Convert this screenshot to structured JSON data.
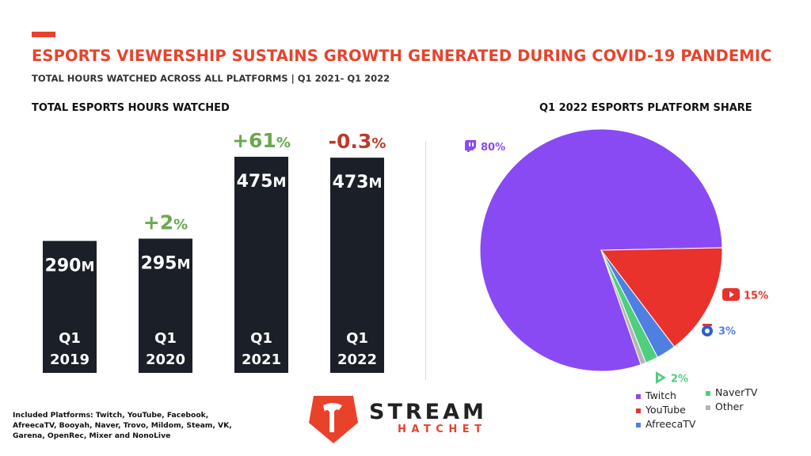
{
  "header": {
    "title": "ESPORTS VIEWERSHIP SUSTAINS GROWTH GENERATED DURING COVID-19 PANDEMIC",
    "subtitle": "TOTAL HOURS WATCHED ACROSS ALL PLATFORMS | Q1 2021- Q1 2022"
  },
  "colors": {
    "accent": "#e8422b",
    "bar": "#1b1f27",
    "growth_positive": "#6aa84f",
    "growth_negative": "#c0392b"
  },
  "chart_data": [
    {
      "type": "bar",
      "title": "TOTAL ESPORTS HOURS WATCHED",
      "categories": [
        "Q1 2019",
        "Q1 2020",
        "Q1 2021",
        "Q1 2022"
      ],
      "category_lines": [
        [
          "Q1",
          "2019"
        ],
        [
          "Q1",
          "2020"
        ],
        [
          "Q1",
          "2021"
        ],
        [
          "Q1",
          "2022"
        ]
      ],
      "values": [
        290,
        295,
        475,
        473
      ],
      "unit": "M",
      "value_labels": [
        "290",
        "295",
        "475",
        "473"
      ],
      "growth": [
        null,
        "+2",
        "+61",
        "-0.3"
      ],
      "growth_suffix": "%",
      "ylim": [
        0,
        520
      ]
    },
    {
      "type": "pie",
      "title": "Q1 2022 ESPORTS PLATFORM SHARE",
      "slices": [
        {
          "name": "Twitch",
          "value": 80,
          "label": "80%",
          "color": "#8a4af3",
          "icon": "twitch-icon"
        },
        {
          "name": "YouTube",
          "value": 15,
          "label": "15%",
          "color": "#e8322b",
          "icon": "youtube-icon"
        },
        {
          "name": "AfreecaTV",
          "value": 2.6,
          "label": "3%",
          "color": "#4f7fe0",
          "icon": "afreecatv-icon"
        },
        {
          "name": "NaverTV",
          "value": 1.7,
          "label": "2%",
          "color": "#4fce7e",
          "icon": "navertv-icon"
        },
        {
          "name": "Other",
          "value": 0.7,
          "label": "",
          "color": "#b5b5b5",
          "icon": ""
        }
      ],
      "legend": [
        "Twitch",
        "YouTube",
        "AfreecaTV",
        "NaverTV",
        "Other"
      ]
    }
  ],
  "footnote": "Included Platforms: Twitch, YouTube, Facebook, AfreecaTV, Booyah, Naver, Trovo, Mildom, Steam, VK, Garena, OpenRec, Mixer and NonoLive",
  "brand": {
    "line1": "STREAM",
    "line2": "HATCHET"
  }
}
